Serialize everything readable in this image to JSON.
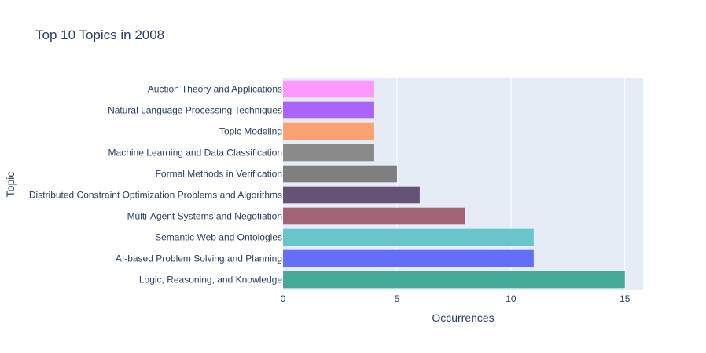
{
  "chart_data": {
    "type": "bar",
    "orientation": "horizontal",
    "title": "Top 10 Topics in 2008",
    "xlabel": "Occurrences",
    "ylabel": "Topic",
    "xlim": [
      0,
      15.8
    ],
    "xticks": [
      0,
      5,
      10,
      15
    ],
    "grid": true,
    "categories": [
      "Logic, Reasoning, and Knowledge",
      "AI-based Problem Solving and Planning",
      "Semantic Web and Ontologies",
      "Multi-Agent Systems and Negotiation",
      "Distributed Constraint Optimization Problems and Algorithms",
      "Formal Methods in Verification",
      "Machine Learning and Data Classification",
      "Topic Modeling",
      "Natural Language Processing Techniques",
      "Auction Theory and Applications"
    ],
    "values": [
      15,
      11,
      11,
      8,
      6,
      5,
      4,
      4,
      4,
      4
    ],
    "colors": [
      "#45ab98",
      "#636efa",
      "#68c5cc",
      "#a26376",
      "#655376",
      "#7f7f7f",
      "#8a8a8a",
      "#fca172",
      "#ab63fa",
      "#fe97fe"
    ]
  }
}
